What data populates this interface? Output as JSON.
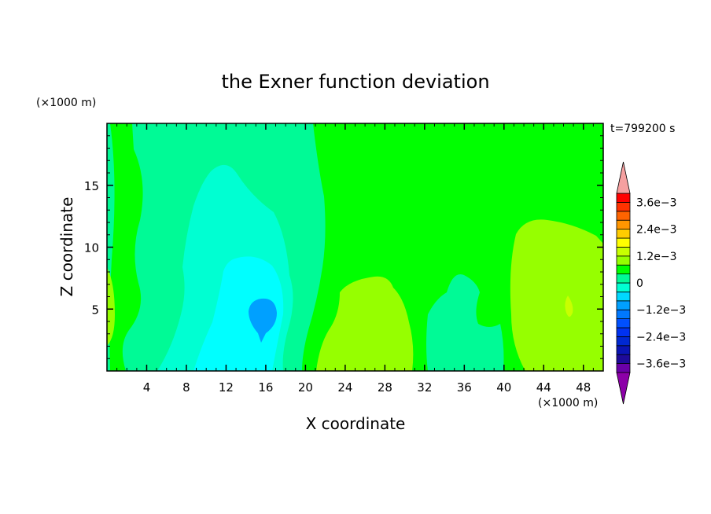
{
  "chart_data": {
    "type": "heatmap",
    "title": "the Exner function deviation",
    "xlabel": "X coordinate",
    "ylabel": "Z coordinate",
    "x_unit": "(×1000 m)",
    "y_unit": "(×1000 m)",
    "time_label": "t=799200 s",
    "xlim": [
      0,
      50
    ],
    "ylim": [
      0,
      20
    ],
    "x_ticks": [
      4,
      8,
      12,
      16,
      20,
      24,
      28,
      32,
      36,
      40,
      44,
      48
    ],
    "y_ticks": [
      5,
      10,
      15
    ],
    "colorbar": {
      "levels": [
        -0.004,
        -0.0036,
        -0.0032,
        -0.0028,
        -0.0024,
        -0.002,
        -0.0016,
        -0.0012,
        -0.0008,
        -0.0004,
        0,
        0.0004,
        0.0008,
        0.0012,
        0.0016,
        0.002,
        0.0024,
        0.0028,
        0.0032,
        0.0036,
        0.004
      ],
      "tick_labels": [
        {
          "value": 0.0036,
          "label": "3.6e−3"
        },
        {
          "value": 0.0024,
          "label": "2.4e−3"
        },
        {
          "value": 0.0012,
          "label": "1.2e−3"
        },
        {
          "value": 0,
          "label": "0"
        },
        {
          "value": -0.0012,
          "label": "−1.2e−3"
        },
        {
          "value": -0.0024,
          "label": "−2.4e−3"
        },
        {
          "value": -0.0036,
          "label": "−3.6e−3"
        }
      ],
      "colors": [
        "#6a00a8",
        "#1e0a9a",
        "#0a14b4",
        "#0028d2",
        "#0032f0",
        "#0050ff",
        "#0078ff",
        "#00a0ff",
        "#00d8ff",
        "#00ffd2",
        "#00fa96",
        "#00ff00",
        "#96ff00",
        "#c8ff00",
        "#ffff00",
        "#ffcc00",
        "#ff9600",
        "#ff6400",
        "#ff3200",
        "#ff0000"
      ],
      "under_color": "#8c00a8",
      "over_color": "#f5a0a0"
    },
    "field_regions": [
      {
        "level": 0,
        "color": "#00ff00",
        "description": "background"
      },
      {
        "level": -0.0004,
        "color": "#00fa96"
      },
      {
        "level": -0.0008,
        "color": "#00ffd2"
      },
      {
        "level": -0.0012,
        "color": "#00ffff"
      },
      {
        "level": -0.0016,
        "color": "#00a0ff"
      },
      {
        "level": 0.0004,
        "color": "#96ff00"
      },
      {
        "level": 0.0008,
        "color": "#c8ff00"
      }
    ]
  }
}
